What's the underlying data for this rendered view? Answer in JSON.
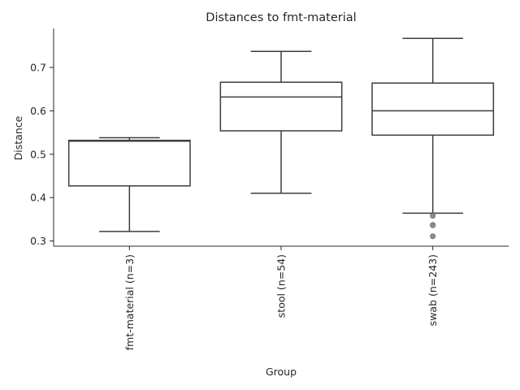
{
  "chart_data": {
    "type": "box",
    "title": "Distances to fmt-material",
    "xlabel": "Group",
    "ylabel": "Distance",
    "ylim": [
      0.288,
      0.79
    ],
    "yticks": [
      "0.3",
      "0.4",
      "0.5",
      "0.6",
      "0.7"
    ],
    "ytick_values": [
      0.3,
      0.4,
      0.5,
      0.6,
      0.7
    ],
    "grid": false,
    "categories": [
      "fmt-material (n=3)",
      "stool (n=54)",
      "swab (n=243)"
    ],
    "boxes": [
      {
        "whisker_low": 0.322,
        "q1": 0.427,
        "median": 0.53,
        "q3": 0.532,
        "whisker_high": 0.538,
        "outliers": []
      },
      {
        "whisker_low": 0.41,
        "q1": 0.554,
        "median": 0.632,
        "q3": 0.666,
        "whisker_high": 0.737,
        "outliers": []
      },
      {
        "whisker_low": 0.364,
        "q1": 0.544,
        "median": 0.6,
        "q3": 0.664,
        "whisker_high": 0.767,
        "outliers": [
          0.358,
          0.337,
          0.336,
          0.311
        ]
      }
    ],
    "colors": {
      "box_edge": "#3d3d3d",
      "box_fill": "#ffffff",
      "outlier": "#8c8c8c",
      "text": "#262626",
      "axis": "#262626"
    }
  }
}
